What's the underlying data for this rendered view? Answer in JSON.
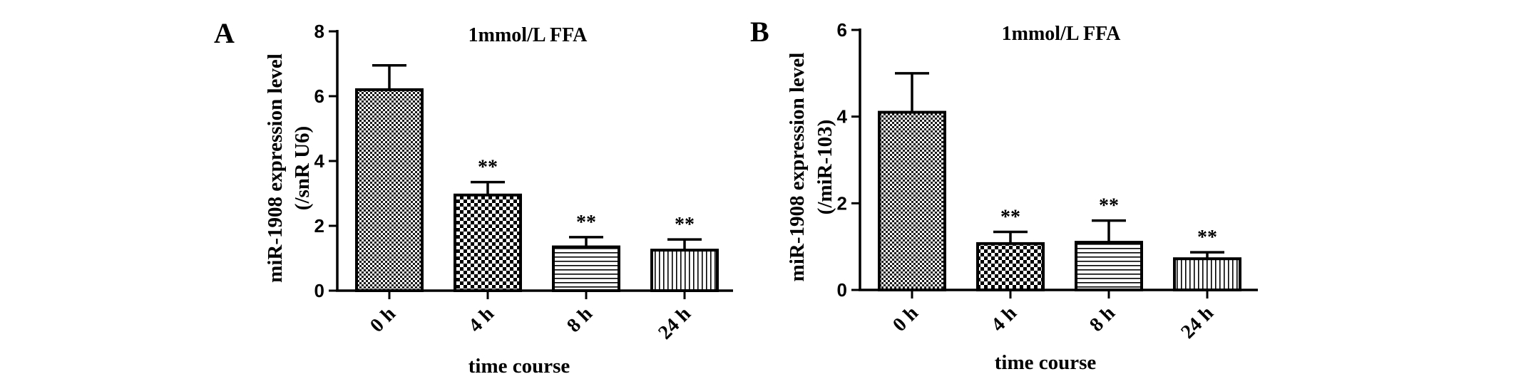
{
  "chart_data": [
    {
      "panel": "A",
      "type": "bar",
      "title": "1mmol/L FFA",
      "xlabel": "time course",
      "ylabel": [
        "miR-1908 expression level",
        "(/snR U6)"
      ],
      "categories": [
        "0 h",
        "4 h",
        "8 h",
        "24 h"
      ],
      "values": [
        6.2,
        2.95,
        1.35,
        1.25
      ],
      "errors": [
        0.75,
        0.4,
        0.3,
        0.33
      ],
      "significance": [
        "",
        "**",
        "**",
        "**"
      ],
      "patterns": [
        "fine-checker",
        "coarse-checker",
        "horizontal-lines",
        "vertical-lines"
      ],
      "ylim": [
        0,
        8
      ],
      "yticks": [
        0,
        2,
        4,
        6,
        8
      ],
      "grid": false,
      "legend": "none"
    },
    {
      "panel": "B",
      "type": "bar",
      "title": "1mmol/L FFA",
      "xlabel": "time course",
      "ylabel": [
        "miR-1908 expression level",
        "(/miR-103)"
      ],
      "categories": [
        "0 h",
        "4 h",
        "8 h",
        "24 h"
      ],
      "values": [
        4.1,
        1.07,
        1.1,
        0.72
      ],
      "errors": [
        0.9,
        0.27,
        0.5,
        0.15
      ],
      "significance": [
        "",
        "**",
        "**",
        "**"
      ],
      "patterns": [
        "fine-checker",
        "coarse-checker",
        "horizontal-lines",
        "vertical-lines"
      ],
      "ylim": [
        0,
        6
      ],
      "yticks": [
        0,
        2,
        4,
        6
      ],
      "grid": false,
      "legend": "none"
    }
  ]
}
